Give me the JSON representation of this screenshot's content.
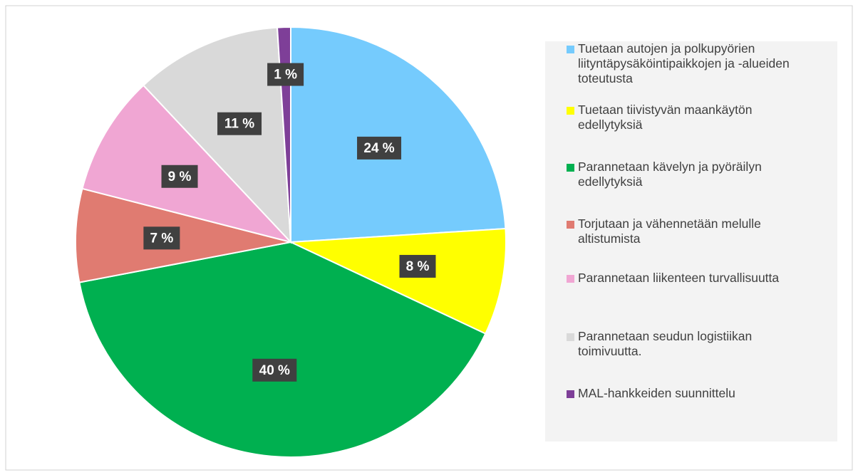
{
  "chart_data": {
    "type": "pie",
    "categories": [
      "Tuetaan autojen ja polkupyörien liityntäpysäköintipaikkojen ja -alueiden toteutusta",
      "Tuetaan tiivistyvän maankäytön edellytyksiä",
      "Parannetaan kävelyn ja pyöräilyn edellytyksiä",
      "Torjutaan ja vähennetään melulle altistumista",
      "Parannetaan liikenteen turvallisuutta",
      "Parannetaan seudun logistiikan toimivuutta.",
      "MAL-hankkeiden suunnittelu"
    ],
    "values": [
      24,
      8,
      40,
      7,
      9,
      11,
      1
    ],
    "value_labels": [
      "24 %",
      "8 %",
      "40 %",
      "7 %",
      "9 %",
      "11 %",
      "1 %"
    ],
    "colors": [
      "#75cbfd",
      "#ffff00",
      "#00b050",
      "#e07b71",
      "#f0a6d3",
      "#d9d9d9",
      "#7e3f98"
    ],
    "legend": "right"
  }
}
